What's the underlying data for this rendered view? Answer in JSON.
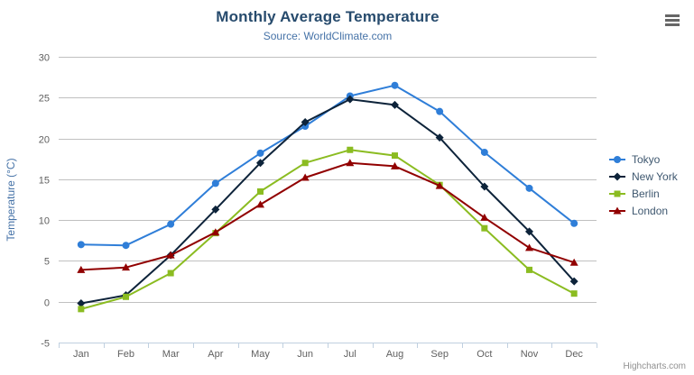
{
  "toolbar": {
    "export_icon": "hamburger-icon"
  },
  "chart_data": {
    "type": "line",
    "title": "Monthly Average Temperature",
    "subtitle": "Source: WorldClimate.com",
    "xlabel": "",
    "ylabel": "Temperature (°C)",
    "ylim": [
      -5,
      30
    ],
    "ytick_interval": 5,
    "grid": "horizontal",
    "legend_position": "right",
    "categories": [
      "Jan",
      "Feb",
      "Mar",
      "Apr",
      "May",
      "Jun",
      "Jul",
      "Aug",
      "Sep",
      "Oct",
      "Nov",
      "Dec"
    ],
    "series": [
      {
        "name": "Tokyo",
        "color": "#2f7ed8",
        "marker": "circle",
        "values": [
          7.0,
          6.9,
          9.5,
          14.5,
          18.2,
          21.5,
          25.2,
          26.5,
          23.3,
          18.3,
          13.9,
          9.6
        ]
      },
      {
        "name": "New York",
        "color": "#0d233a",
        "marker": "diamond",
        "values": [
          -0.2,
          0.8,
          5.7,
          11.3,
          17.0,
          22.0,
          24.8,
          24.1,
          20.1,
          14.1,
          8.6,
          2.5
        ]
      },
      {
        "name": "Berlin",
        "color": "#8bbc21",
        "marker": "square",
        "values": [
          -0.9,
          0.6,
          3.5,
          8.4,
          13.5,
          17.0,
          18.6,
          17.9,
          14.3,
          9.0,
          3.9,
          1.0
        ]
      },
      {
        "name": "London",
        "color": "#910000",
        "marker": "triangle",
        "values": [
          3.9,
          4.2,
          5.7,
          8.5,
          11.9,
          15.2,
          17.0,
          16.6,
          14.2,
          10.3,
          6.6,
          4.8
        ]
      }
    ],
    "axis_colors": {
      "grid": "#C0C0C0",
      "axis_line": "#C0D0E0",
      "labels": "#606060"
    },
    "credits": "Highcharts.com"
  }
}
